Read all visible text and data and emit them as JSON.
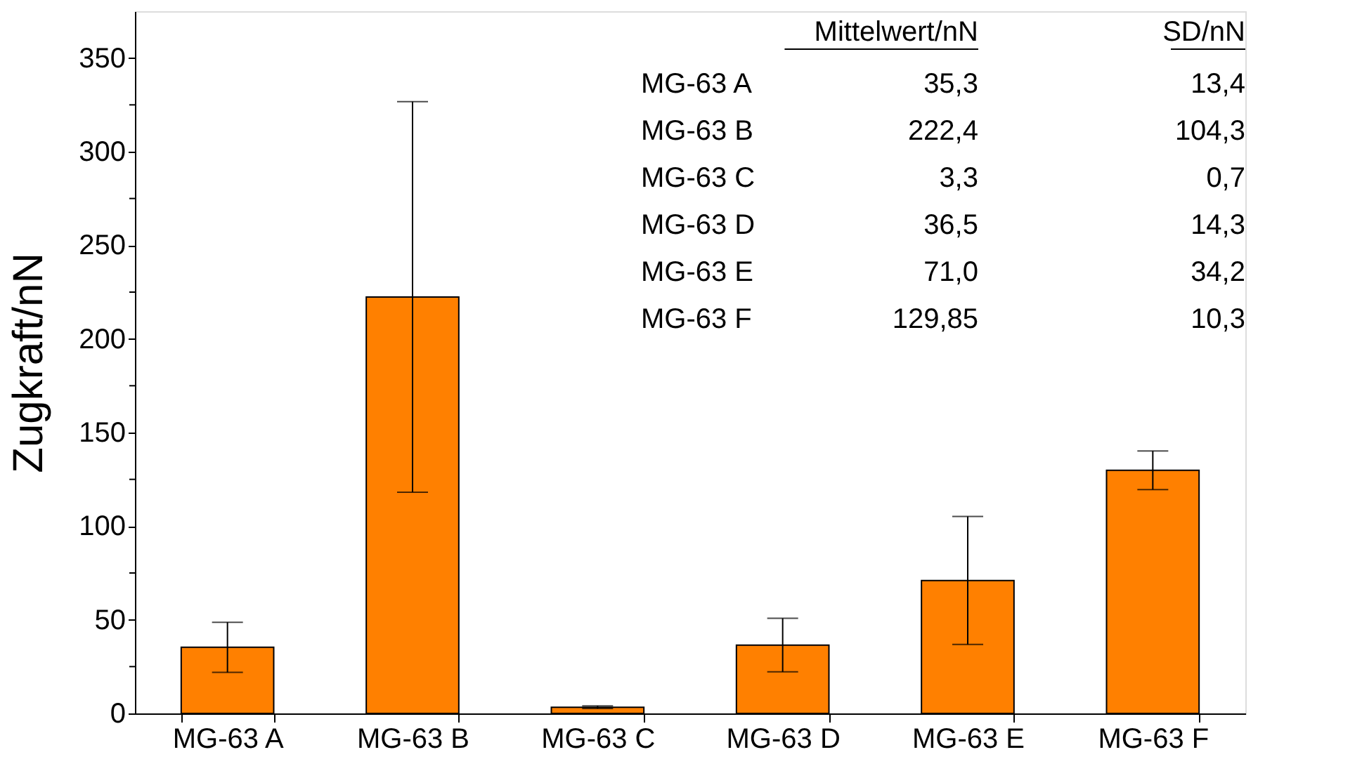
{
  "chart_data": {
    "type": "bar",
    "ylabel": "Zugkraft/nN",
    "categories": [
      "MG-63 A",
      "MG-63 B",
      "MG-63 C",
      "MG-63 D",
      "MG-63 E",
      "MG-63 F"
    ],
    "values": [
      35.3,
      222.4,
      3.3,
      36.5,
      71.0,
      129.85
    ],
    "errors": [
      13.4,
      104.3,
      0.7,
      14.3,
      34.2,
      10.3
    ],
    "annotations": [
      "Mittelwert/nN",
      "SD/nN",
      "35,3",
      "13,4",
      "222,4",
      "104,3",
      "3,3",
      "0,7",
      "36,5",
      "14,3",
      "71,0",
      "34,2",
      "129,85",
      "10,3"
    ],
    "color": "#ff8000",
    "ylim": [
      0,
      375
    ],
    "yticks": [
      0,
      {
        "value": 25,
        "label": null
      },
      50,
      {
        "value": 75,
        "label": null
      },
      100,
      {
        "value": 125,
        "label": null
      },
      150,
      {
        "value": 175,
        "label": null
      },
      200,
      {
        "value": 225,
        "label": null
      },
      250,
      {
        "value": 275,
        "label": null
      },
      300,
      {
        "value": 325,
        "label": null
      },
      350
    ],
    "grid": false
  }
}
